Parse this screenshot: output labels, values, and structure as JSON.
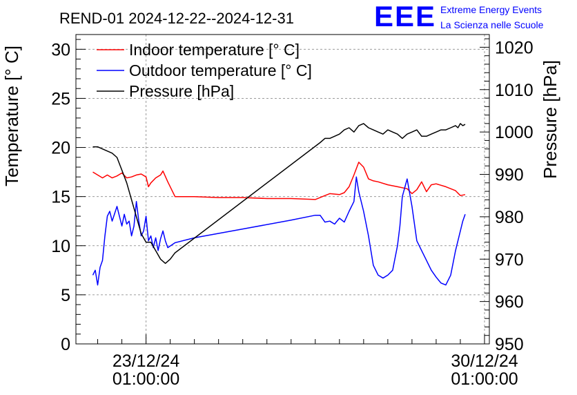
{
  "chart_data": {
    "type": "line",
    "title": "REND-01 2024-12-22--2024-12-31",
    "logo": {
      "mark": "EEE",
      "line1": "Extreme Energy Events",
      "line2": "La Scienza nelle Scuole",
      "color": "#0000ff"
    },
    "ylabel": "Temperature [° C]",
    "y2label": "Pressure [hPa]",
    "ylim": [
      0,
      31.5
    ],
    "y2lim": [
      950,
      1023
    ],
    "yticks": [
      0,
      5,
      10,
      15,
      20,
      25,
      30
    ],
    "y2ticks": [
      950,
      960,
      970,
      980,
      990,
      1000,
      1010,
      1020
    ],
    "xlim": [
      -1.45,
      7.1
    ],
    "xticks": [
      {
        "x": 0,
        "line1": "23/12/24",
        "line2": "01:00:00"
      },
      {
        "x": 7,
        "line1": "30/12/24",
        "line2": "01:00:00"
      }
    ],
    "grid": true,
    "legend_position": "top-left",
    "series": [
      {
        "name": "Indoor temperature [° C]",
        "axis": "left",
        "color": "#ff0000",
        "x": [
          -1.1,
          -1.0,
          -0.9,
          -0.8,
          -0.7,
          -0.6,
          -0.5,
          -0.4,
          -0.3,
          -0.2,
          -0.1,
          0.0,
          0.05,
          0.1,
          0.2,
          0.3,
          0.35,
          0.45,
          0.6,
          1.0,
          1.5,
          2.0,
          2.5,
          3.0,
          3.5,
          3.6,
          3.7,
          3.8,
          4.0,
          4.1,
          4.2,
          4.3,
          4.4,
          4.5,
          4.6,
          4.7,
          4.8,
          5.0,
          5.2,
          5.4,
          5.5,
          5.6,
          5.7,
          5.8,
          5.9,
          6.0,
          6.2,
          6.4,
          6.5,
          6.6
        ],
        "y": [
          17.5,
          17.2,
          16.9,
          17.2,
          16.9,
          17.1,
          17.4,
          16.9,
          17.0,
          17.2,
          17.3,
          17.0,
          16.0,
          16.4,
          16.9,
          17.2,
          17.6,
          16.5,
          15.0,
          15.0,
          14.9,
          14.9,
          14.8,
          14.8,
          14.7,
          14.9,
          15.1,
          15.3,
          15.2,
          15.4,
          16.0,
          17.2,
          18.5,
          18.0,
          16.8,
          16.6,
          16.5,
          16.2,
          16.0,
          15.8,
          15.3,
          15.7,
          16.5,
          15.5,
          16.2,
          16.3,
          16.0,
          15.6,
          15.1,
          15.2
        ]
      },
      {
        "name": "Outdoor temperature [° C]",
        "axis": "left",
        "color": "#0000ff",
        "x": [
          -1.1,
          -1.05,
          -1.0,
          -0.95,
          -0.9,
          -0.85,
          -0.8,
          -0.75,
          -0.7,
          -0.6,
          -0.5,
          -0.45,
          -0.4,
          -0.35,
          -0.3,
          -0.25,
          -0.2,
          -0.15,
          -0.1,
          -0.05,
          0.0,
          0.05,
          0.1,
          0.15,
          0.2,
          0.25,
          0.3,
          0.35,
          0.4,
          0.45,
          0.6,
          1.0,
          2.0,
          3.0,
          3.5,
          3.6,
          3.7,
          3.8,
          3.9,
          4.0,
          4.1,
          4.2,
          4.3,
          4.35,
          4.4,
          4.5,
          4.6,
          4.7,
          4.8,
          4.9,
          5.0,
          5.1,
          5.2,
          5.25,
          5.3,
          5.4,
          5.5,
          5.6,
          5.7,
          5.8,
          5.9,
          6.0,
          6.1,
          6.2,
          6.3,
          6.4,
          6.45,
          6.5,
          6.55,
          6.6
        ],
        "y": [
          7.0,
          7.5,
          6.0,
          7.8,
          8.5,
          11.0,
          13.0,
          13.5,
          12.5,
          14.0,
          12.0,
          13.2,
          12.2,
          12.5,
          11.0,
          12.0,
          14.5,
          12.5,
          11.0,
          11.5,
          13.0,
          10.5,
          11.0,
          9.8,
          10.8,
          9.5,
          10.7,
          11.5,
          10.5,
          9.8,
          10.3,
          10.8,
          11.7,
          12.6,
          13.1,
          13.1,
          12.4,
          12.5,
          12.2,
          12.8,
          12.4,
          13.5,
          14.5,
          17.0,
          15.5,
          13.5,
          11.0,
          8.0,
          7.0,
          6.7,
          7.0,
          7.5,
          10.0,
          12.0,
          15.0,
          16.8,
          14.0,
          10.5,
          9.5,
          8.5,
          7.5,
          6.8,
          6.2,
          6.0,
          7.0,
          9.5,
          10.5,
          11.5,
          12.5,
          13.2
        ]
      },
      {
        "name": "Pressure [hPa]",
        "axis": "right",
        "color": "#000000",
        "x": [
          -1.1,
          -1.0,
          -0.9,
          -0.7,
          -0.6,
          -0.5,
          -0.4,
          -0.3,
          -0.2,
          -0.1,
          0.0,
          0.1,
          0.2,
          0.3,
          0.4,
          0.5,
          0.6,
          3.6,
          3.7,
          3.8,
          3.9,
          4.0,
          4.1,
          4.2,
          4.3,
          4.4,
          4.5,
          4.6,
          4.7,
          4.8,
          4.9,
          5.0,
          5.1,
          5.2,
          5.3,
          5.4,
          5.5,
          5.6,
          5.7,
          5.8,
          5.9,
          6.0,
          6.1,
          6.2,
          6.3,
          6.4,
          6.45,
          6.5,
          6.55,
          6.6
        ],
        "y": [
          996.5,
          996.5,
          996.0,
          995.0,
          994.0,
          991.0,
          988.0,
          984.0,
          980.0,
          976.0,
          974.0,
          974.0,
          972.0,
          970.0,
          969.0,
          970.0,
          971.5,
          997.5,
          998.5,
          998.5,
          999.0,
          999.5,
          1000.5,
          1001.0,
          1000.0,
          1001.5,
          1002.0,
          1001.0,
          1000.5,
          1000.0,
          999.5,
          1000.5,
          1000.0,
          999.5,
          998.5,
          999.5,
          1000.0,
          1000.5,
          999.0,
          999.0,
          999.5,
          1000.0,
          1000.5,
          1000.5,
          1001.0,
          1001.5,
          1001.0,
          1002.0,
          1001.5,
          1001.8
        ]
      }
    ]
  }
}
